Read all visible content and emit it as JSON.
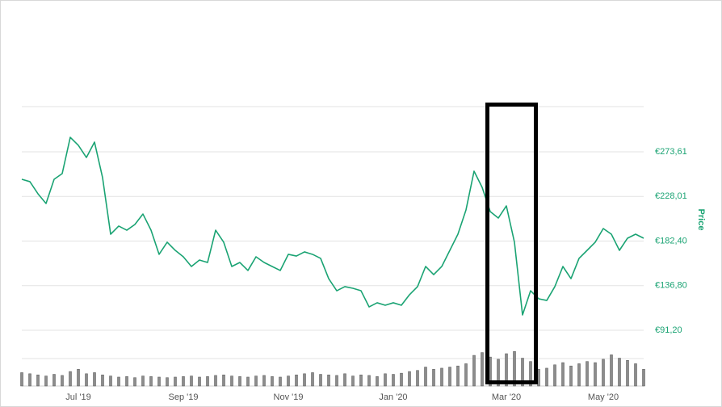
{
  "chart_data": {
    "type": "line",
    "ylabel": "Price",
    "categories": [
      null,
      null,
      null,
      null,
      null,
      null,
      null,
      "Jul '19",
      null,
      null,
      null,
      null,
      null,
      null,
      null,
      null,
      null,
      null,
      null,
      null,
      "Sep '19",
      null,
      null,
      null,
      null,
      null,
      null,
      null,
      null,
      null,
      null,
      null,
      null,
      "Nov '19",
      null,
      null,
      null,
      null,
      null,
      null,
      null,
      null,
      null,
      null,
      null,
      null,
      "Jan '20",
      null,
      null,
      null,
      null,
      null,
      null,
      null,
      null,
      null,
      null,
      null,
      null,
      null,
      "Mar '20",
      null,
      null,
      null,
      null,
      null,
      null,
      null,
      null,
      null,
      null,
      null,
      "May '20",
      null,
      null,
      null,
      null,
      null
    ],
    "series": [
      {
        "color": "#1aa373",
        "values": [
          245.5,
          243.1,
          230.7,
          220.8,
          245.5,
          251.3,
          288.4,
          280.2,
          267.8,
          283.5,
          247.2,
          189.4,
          197.7,
          193.5,
          199.3,
          210.0,
          193.5,
          168.8,
          181.2,
          172.9,
          166.3,
          156.4,
          163.0,
          160.5,
          193.5,
          181.2,
          156.4,
          160.5,
          152.3,
          166.3,
          160.5,
          156.4,
          152.3,
          168.8,
          167.1,
          171.3,
          168.8,
          164.7,
          144.0,
          131.6,
          135.8,
          134.1,
          131.6,
          115.1,
          119.3,
          116.8,
          119.3,
          116.8,
          127.5,
          135.8,
          156.4,
          148.1,
          156.4,
          172.9,
          189.4,
          214.2,
          253.8,
          237.3,
          212.5,
          205.9,
          218.3,
          181.2,
          106.9,
          131.6,
          123.4,
          121.7,
          135.8,
          156.4,
          144.0,
          164.7,
          172.9,
          181.2,
          195.2,
          189.4,
          172.9,
          185.3,
          189.4,
          185.3
        ]
      },
      {
        "color": "#8c8c8c",
        "axis": "y2",
        "values": [
          24,
          22,
          20,
          18,
          21,
          19,
          26,
          30,
          22,
          24,
          20,
          18,
          16,
          17,
          15,
          18,
          17,
          16,
          15,
          16,
          17,
          18,
          16,
          17,
          19,
          20,
          18,
          17,
          16,
          18,
          19,
          17,
          16,
          18,
          20,
          22,
          24,
          21,
          20,
          19,
          22,
          18,
          20,
          19,
          17,
          22,
          21,
          23,
          26,
          28,
          34,
          30,
          32,
          34,
          36,
          40,
          55,
          60,
          52,
          48,
          58,
          62,
          50,
          44,
          30,
          32,
          38,
          42,
          36,
          40,
          44,
          42,
          48,
          56,
          50,
          46,
          40,
          30
        ]
      }
    ],
    "ylim": [
      91.2,
      319.8
    ],
    "yticks": [
      {
        "value": 91.2,
        "label": "€91,20"
      },
      {
        "value": 136.8,
        "label": "€136,80"
      },
      {
        "value": 182.4,
        "label": "€182,40"
      },
      {
        "value": 228.01,
        "label": "€228,01"
      },
      {
        "value": 273.61,
        "label": "€273,61"
      }
    ],
    "y2lim": [
      0,
      100
    ],
    "grid": true
  }
}
